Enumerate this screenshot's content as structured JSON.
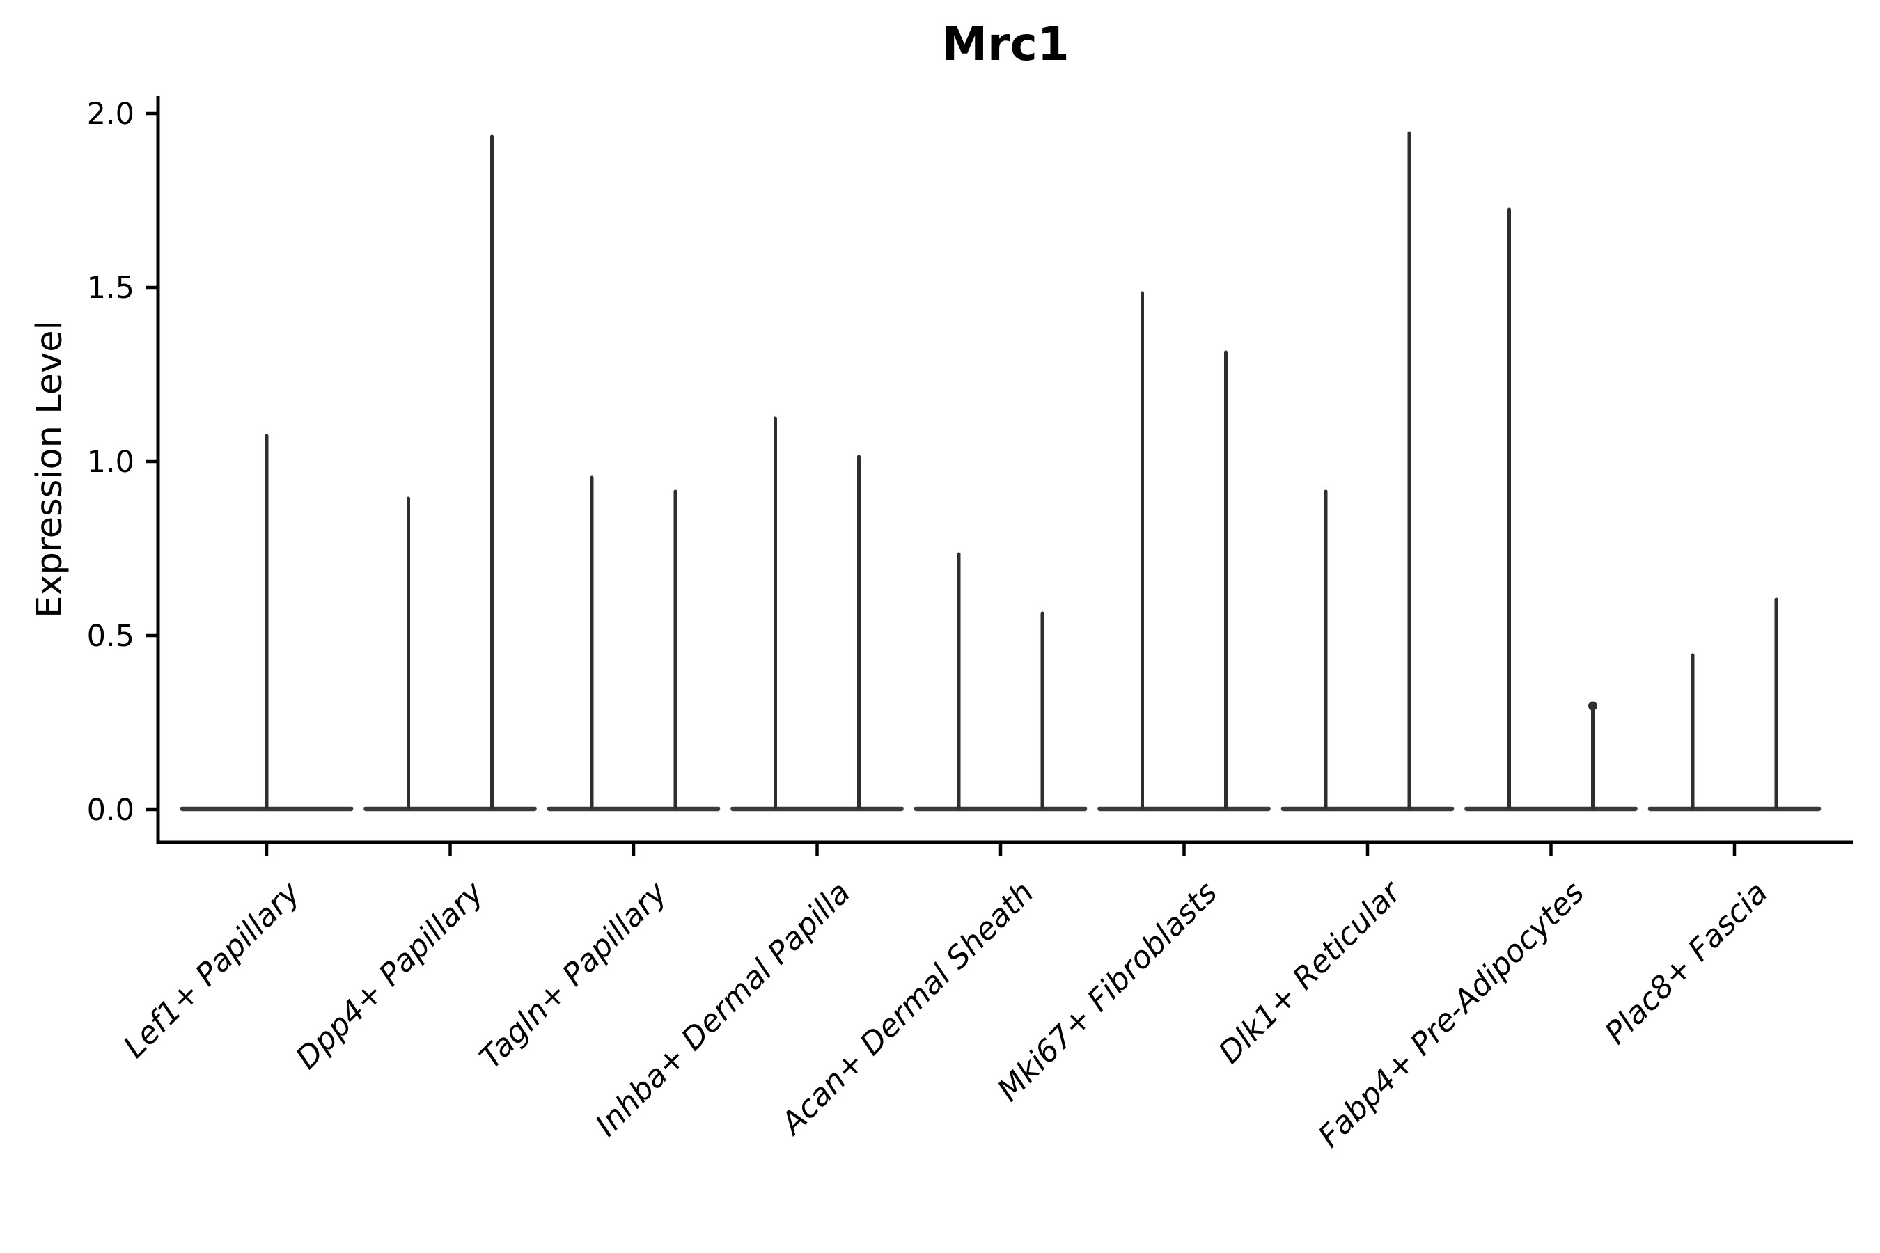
{
  "chart_data": {
    "type": "violin",
    "title": "Mrc1",
    "ylabel": "Expression Level",
    "xlabel": "",
    "ylim": [
      -0.09,
      2.05
    ],
    "yticks": [
      0.0,
      0.5,
      1.0,
      1.5,
      2.0
    ],
    "grid": false,
    "legend": "none",
    "baseline_at_zero": true,
    "violin_color": "#2e2e2e",
    "baseline_color": "#3a3a3a",
    "axis_color": "#000000",
    "categories": [
      "Lef1+ Papillary",
      "Dpp4+ Papillary",
      "Tagln+ Papillary",
      "Inhba+ Dermal Papilla",
      "Acan+ Dermal Sheath",
      "Mki67+ Fibroblasts",
      "Dlk1+ Reticular",
      "Fabp4+ Pre-Adipocytes",
      "Plac8+ Fascia"
    ],
    "series": [
      {
        "category": "Lef1+ Papillary",
        "peaks": [
          {
            "value": 1.08
          }
        ]
      },
      {
        "category": "Dpp4+ Papillary",
        "peaks": [
          {
            "value": 0.9
          },
          {
            "value": 1.94
          }
        ]
      },
      {
        "category": "Tagln+ Papillary",
        "peaks": [
          {
            "value": 0.96
          },
          {
            "value": 0.92
          }
        ]
      },
      {
        "category": "Inhba+ Dermal Papilla",
        "peaks": [
          {
            "value": 1.13
          },
          {
            "value": 1.02
          }
        ]
      },
      {
        "category": "Acan+ Dermal Sheath",
        "peaks": [
          {
            "value": 0.74
          },
          {
            "value": 0.57
          }
        ]
      },
      {
        "category": "Mki67+ Fibroblasts",
        "peaks": [
          {
            "value": 1.49
          },
          {
            "value": 1.32
          }
        ]
      },
      {
        "category": "Dlk1+ Reticular",
        "peaks": [
          {
            "value": 0.92
          },
          {
            "value": 1.95
          }
        ]
      },
      {
        "category": "Fabp4+ Pre-Adipocytes",
        "peaks": [
          {
            "value": 1.73
          },
          {
            "value": 0.31,
            "knob": true
          }
        ]
      },
      {
        "category": "Plac8+ Fascia",
        "peaks": [
          {
            "value": 0.45
          },
          {
            "value": 0.61
          }
        ]
      }
    ]
  }
}
